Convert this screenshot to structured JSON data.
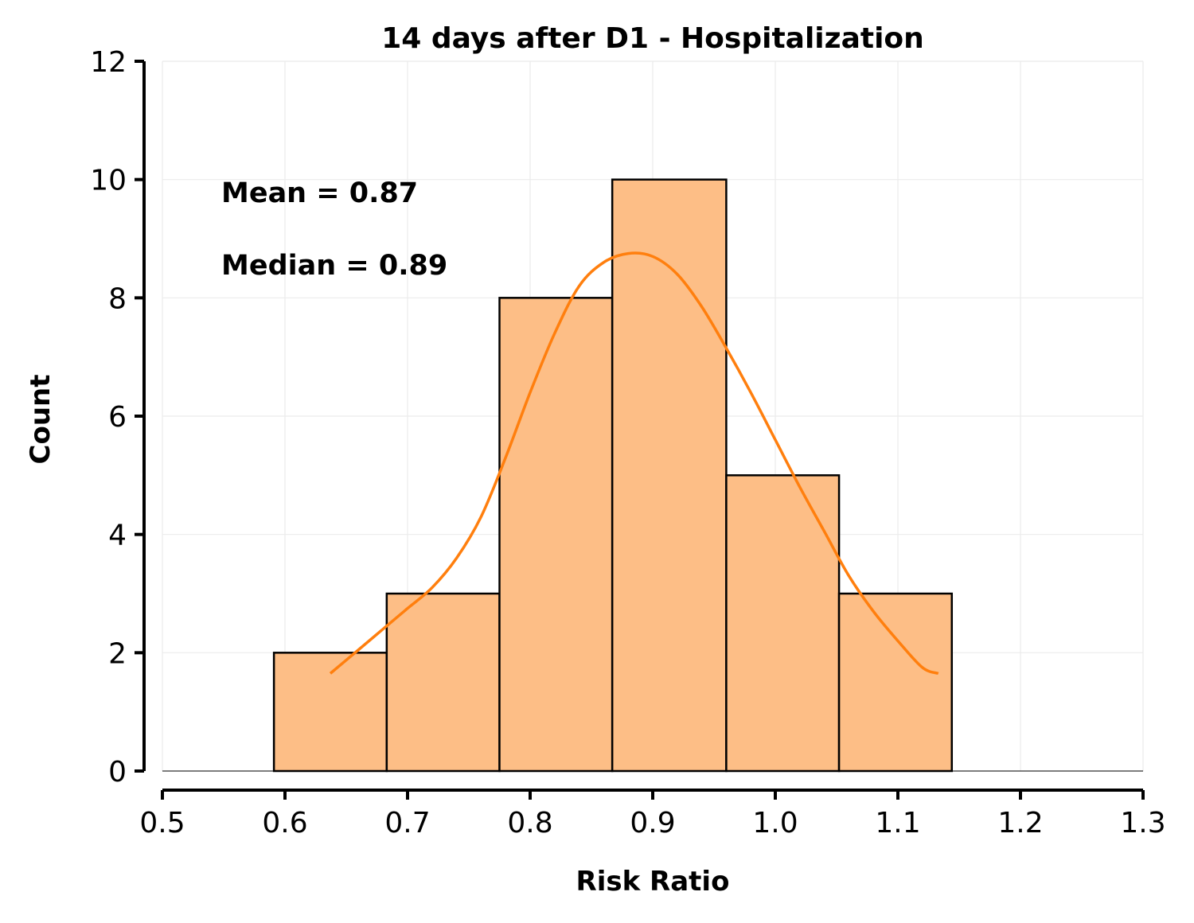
{
  "chart_data": {
    "type": "bar",
    "title": "14 days after D1 - Hospitalization",
    "xlabel": "Risk Ratio",
    "ylabel": "Count",
    "xlim": [
      0.5,
      1.3
    ],
    "ylim": [
      0,
      12
    ],
    "xticks": [
      "0.5",
      "0.6",
      "0.7",
      "0.8",
      "0.9",
      "1.0",
      "1.1",
      "1.2",
      "1.3"
    ],
    "yticks": [
      "0",
      "2",
      "4",
      "6",
      "8",
      "10",
      "12"
    ],
    "grid": true,
    "bins": [
      {
        "start": 0.591,
        "end": 0.683,
        "count": 2
      },
      {
        "start": 0.683,
        "end": 0.775,
        "count": 3
      },
      {
        "start": 0.775,
        "end": 0.867,
        "count": 8
      },
      {
        "start": 0.867,
        "end": 0.96,
        "count": 10
      },
      {
        "start": 0.96,
        "end": 1.052,
        "count": 5
      },
      {
        "start": 1.052,
        "end": 1.144,
        "count": 3
      }
    ],
    "kde": {
      "x": [
        0.637,
        0.66,
        0.68,
        0.7,
        0.72,
        0.74,
        0.76,
        0.78,
        0.8,
        0.82,
        0.84,
        0.86,
        0.88,
        0.9,
        0.92,
        0.94,
        0.96,
        0.98,
        1.0,
        1.02,
        1.04,
        1.06,
        1.08,
        1.1,
        1.12,
        1.133
      ],
      "y": [
        1.65,
        2.05,
        2.4,
        2.75,
        3.1,
        3.6,
        4.3,
        5.3,
        6.4,
        7.4,
        8.2,
        8.6,
        8.75,
        8.7,
        8.4,
        7.85,
        7.15,
        6.4,
        5.6,
        4.8,
        4.05,
        3.3,
        2.7,
        2.2,
        1.75,
        1.65
      ]
    },
    "annotations": [
      "Mean = 0.87",
      "Median = 0.89"
    ],
    "colors": {
      "bar_fill": "#fdbe86",
      "bar_edge": "#000000",
      "kde": "#ff7f0e",
      "grid": "#ebebeb"
    }
  }
}
